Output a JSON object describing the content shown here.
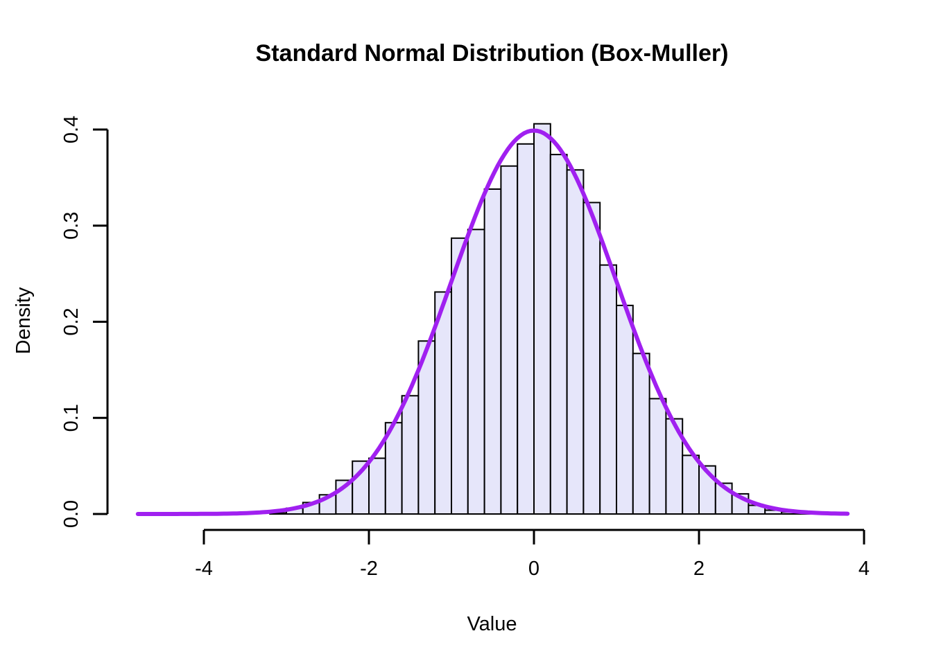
{
  "chart_data": {
    "type": "bar",
    "subtype": "histogram-with-density-curve",
    "title": "Standard Normal Distribution (Box-Muller)",
    "xlabel": "Value",
    "ylabel": "Density",
    "xlim": [
      -4.8,
      3.8
    ],
    "ylim": [
      0,
      0.4
    ],
    "grid": false,
    "x_ticks": [
      {
        "value": -4,
        "label": "-4"
      },
      {
        "value": -2,
        "label": "-2"
      },
      {
        "value": 0,
        "label": "0"
      },
      {
        "value": 2,
        "label": "2"
      },
      {
        "value": 4,
        "label": "4"
      }
    ],
    "y_ticks": [
      {
        "value": 0.0,
        "label": "0.0"
      },
      {
        "value": 0.1,
        "label": "0.1"
      },
      {
        "value": 0.2,
        "label": "0.2"
      },
      {
        "value": 0.3,
        "label": "0.3"
      },
      {
        "value": 0.4,
        "label": "0.4"
      }
    ],
    "histogram": {
      "bin_start": -3.2,
      "bin_width": 0.2,
      "densities": [
        0.001,
        0.006,
        0.012,
        0.02,
        0.035,
        0.055,
        0.058,
        0.095,
        0.123,
        0.18,
        0.231,
        0.287,
        0.296,
        0.338,
        0.362,
        0.385,
        0.406,
        0.374,
        0.358,
        0.324,
        0.259,
        0.217,
        0.167,
        0.12,
        0.099,
        0.061,
        0.05,
        0.032,
        0.021,
        0.009,
        0.004,
        0.002,
        0.0015,
        0.001
      ],
      "fill_color": "#E6E6FA",
      "border_color": "#000000"
    },
    "curve": {
      "name": "standard-normal-pdf",
      "mean": 0,
      "sd": 1,
      "x_range": [
        -4.8,
        3.8
      ],
      "color": "#A020F0",
      "line_width": 6
    },
    "axis_color": "#000000"
  }
}
